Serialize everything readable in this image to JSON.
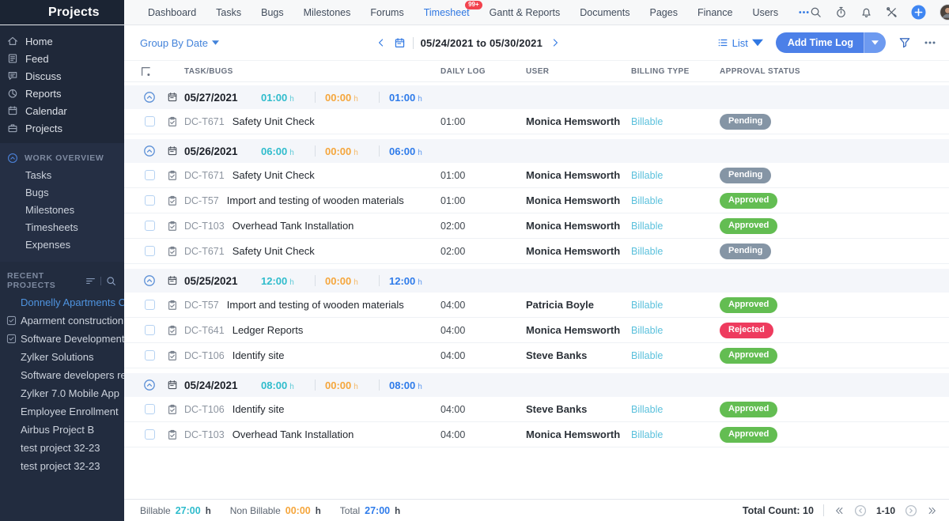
{
  "topbar": {
    "brand": "Projects",
    "nav": [
      {
        "label": "Dashboard"
      },
      {
        "label": "Tasks"
      },
      {
        "label": "Bugs"
      },
      {
        "label": "Milestones"
      },
      {
        "label": "Forums"
      },
      {
        "label": "Timesheet",
        "active": true,
        "badge": "99+"
      },
      {
        "label": "Gantt & Reports"
      },
      {
        "label": "Documents"
      },
      {
        "label": "Pages"
      },
      {
        "label": "Finance"
      },
      {
        "label": "Users"
      },
      {
        "icon": "ellipsis"
      }
    ],
    "right_icons": [
      "search",
      "timer",
      "bell",
      "tools",
      "plus",
      "avatar"
    ]
  },
  "sidebar": {
    "main": [
      {
        "icon": "home",
        "label": "Home"
      },
      {
        "icon": "feed",
        "label": "Feed"
      },
      {
        "icon": "discuss",
        "label": "Discuss"
      },
      {
        "icon": "reports",
        "label": "Reports"
      },
      {
        "icon": "calendar",
        "label": "Calendar"
      },
      {
        "icon": "projects",
        "label": "Projects"
      }
    ],
    "work_overview": {
      "title": "WORK OVERVIEW",
      "items": [
        {
          "label": "Tasks"
        },
        {
          "label": "Bugs"
        },
        {
          "label": "Milestones"
        },
        {
          "label": "Timesheets"
        },
        {
          "label": "Expenses"
        }
      ]
    },
    "recent": {
      "title": "RECENT PROJECTS",
      "items": [
        {
          "label": "Donnelly Apartments C",
          "active": true
        },
        {
          "label": "Aparment construction",
          "icon": "project-tile"
        },
        {
          "label": "Software Development",
          "icon": "project-tile"
        },
        {
          "label": "Zylker Solutions"
        },
        {
          "label": "Software developers re"
        },
        {
          "label": "Zylker 7.0 Mobile App"
        },
        {
          "label": "Employee Enrollment"
        },
        {
          "label": "Airbus Project B"
        },
        {
          "label": "test project 32-23"
        },
        {
          "label": "test project 32-23"
        }
      ]
    }
  },
  "toolbar": {
    "group_by": "Group By Date",
    "date_range": "05/24/2021 to 05/30/2021",
    "view_label": "List",
    "add_label": "Add Time Log"
  },
  "table": {
    "columns": [
      "TASK/BUGS",
      "DAILY LOG",
      "USER",
      "BILLING TYPE",
      "APPROVAL STATUS"
    ],
    "hours_unit": "h",
    "groups": [
      {
        "date": "05/27/2021",
        "billable": "01:00",
        "non_billable": "00:00",
        "total": "01:00",
        "rows": [
          {
            "id": "DC-T671",
            "task": "Safety Unit Check",
            "log": "01:00",
            "user": "Monica Hemsworth",
            "billing": "Billable",
            "status": "Pending"
          }
        ]
      },
      {
        "date": "05/26/2021",
        "billable": "06:00",
        "non_billable": "00:00",
        "total": "06:00",
        "rows": [
          {
            "id": "DC-T671",
            "task": "Safety Unit Check",
            "log": "01:00",
            "user": "Monica Hemsworth",
            "billing": "Billable",
            "status": "Pending"
          },
          {
            "id": "DC-T57",
            "task": "Import and testing of wooden materials",
            "log": "01:00",
            "user": "Monica Hemsworth",
            "billing": "Billable",
            "status": "Approved"
          },
          {
            "id": "DC-T103",
            "task": "Overhead Tank Installation",
            "log": "02:00",
            "user": "Monica Hemsworth",
            "billing": "Billable",
            "status": "Approved"
          },
          {
            "id": "DC-T671",
            "task": "Safety Unit Check",
            "log": "02:00",
            "user": "Monica Hemsworth",
            "billing": "Billable",
            "status": "Pending"
          }
        ]
      },
      {
        "date": "05/25/2021",
        "billable": "12:00",
        "non_billable": "00:00",
        "total": "12:00",
        "rows": [
          {
            "id": "DC-T57",
            "task": "Import and testing of wooden materials",
            "log": "04:00",
            "user": "Patricia Boyle",
            "billing": "Billable",
            "status": "Approved"
          },
          {
            "id": "DC-T641",
            "task": "Ledger Reports",
            "log": "04:00",
            "user": "Monica Hemsworth",
            "billing": "Billable",
            "status": "Rejected"
          },
          {
            "id": "DC-T106",
            "task": "Identify site",
            "log": "04:00",
            "user": "Steve Banks",
            "billing": "Billable",
            "status": "Approved"
          }
        ]
      },
      {
        "date": "05/24/2021",
        "billable": "08:00",
        "non_billable": "00:00",
        "total": "08:00",
        "rows": [
          {
            "id": "DC-T106",
            "task": "Identify site",
            "log": "04:00",
            "user": "Steve Banks",
            "billing": "Billable",
            "status": "Approved"
          },
          {
            "id": "DC-T103",
            "task": "Overhead Tank Installation",
            "log": "04:00",
            "user": "Monica Hemsworth",
            "billing": "Billable",
            "status": "Approved"
          }
        ]
      }
    ]
  },
  "footer": {
    "billable_label": "Billable",
    "billable_value": "27:00",
    "nonbillable_label": "Non Billable",
    "nonbillable_value": "00:00",
    "total_label": "Total",
    "total_value": "27:00",
    "unit": "h",
    "total_count": "Total Count: 10",
    "page_range": "1-10"
  },
  "colors": {
    "accent_blue": "#3078e2",
    "billable_teal": "#2fbccc",
    "nonbillable_orange": "#f5a63c",
    "total_blue": "#2e7bea",
    "billing_type_cyan": "#5ac0dc",
    "topbar_dark": "#1b2433",
    "sidebar_dark": "#1f2839",
    "group_row_bg": "#f4f6fa"
  },
  "status_colors": {
    "Pending": "#8595a5",
    "Approved": "#63bd52",
    "Rejected": "#ee3b5e"
  }
}
